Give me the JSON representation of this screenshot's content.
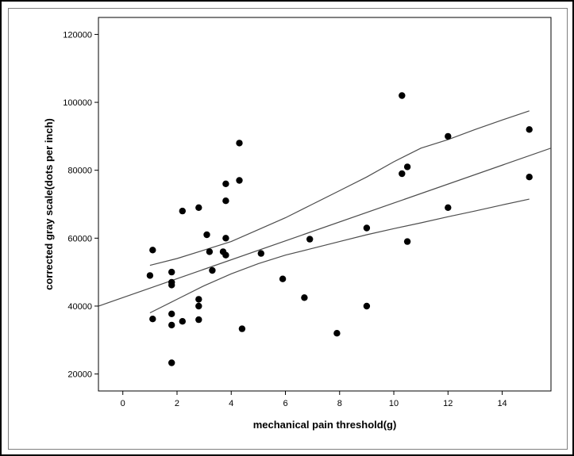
{
  "chart_data": {
    "type": "scatter",
    "xlabel": "mechanical pain threshold(g)",
    "ylabel": "corrected gray scale(dots per inch)",
    "xlim": [
      -0.9,
      15.8
    ],
    "ylim": [
      15000,
      125000
    ],
    "xticks": [
      "0",
      "2",
      "4",
      "6",
      "8",
      "10",
      "12",
      "14"
    ],
    "yticks": [
      "20000",
      "40000",
      "60000",
      "80000",
      "100000",
      "120000"
    ],
    "grid": false,
    "colors": {
      "points": "#000000",
      "lines": "#4d4d4d",
      "axis": "#000000"
    },
    "points": [
      {
        "x": 1.0,
        "y": 49000
      },
      {
        "x": 1.1,
        "y": 56500
      },
      {
        "x": 1.1,
        "y": 36200
      },
      {
        "x": 1.8,
        "y": 50000
      },
      {
        "x": 1.8,
        "y": 47000
      },
      {
        "x": 1.8,
        "y": 46200
      },
      {
        "x": 1.8,
        "y": 37700
      },
      {
        "x": 1.8,
        "y": 34400
      },
      {
        "x": 1.8,
        "y": 23300
      },
      {
        "x": 2.2,
        "y": 68000
      },
      {
        "x": 2.2,
        "y": 35500
      },
      {
        "x": 2.8,
        "y": 69000
      },
      {
        "x": 2.8,
        "y": 42000
      },
      {
        "x": 2.8,
        "y": 40000
      },
      {
        "x": 2.8,
        "y": 36000
      },
      {
        "x": 3.1,
        "y": 61000
      },
      {
        "x": 3.2,
        "y": 56000
      },
      {
        "x": 3.3,
        "y": 50500
      },
      {
        "x": 3.7,
        "y": 56000
      },
      {
        "x": 3.8,
        "y": 76000
      },
      {
        "x": 3.8,
        "y": 71000
      },
      {
        "x": 3.8,
        "y": 60000
      },
      {
        "x": 3.8,
        "y": 55000
      },
      {
        "x": 4.3,
        "y": 88000
      },
      {
        "x": 4.3,
        "y": 77000
      },
      {
        "x": 4.4,
        "y": 33300
      },
      {
        "x": 5.1,
        "y": 55500
      },
      {
        "x": 5.9,
        "y": 48000
      },
      {
        "x": 6.7,
        "y": 42500
      },
      {
        "x": 6.9,
        "y": 59700
      },
      {
        "x": 7.9,
        "y": 32000
      },
      {
        "x": 9.0,
        "y": 63000
      },
      {
        "x": 9.0,
        "y": 40000
      },
      {
        "x": 10.3,
        "y": 102000
      },
      {
        "x": 10.3,
        "y": 79000
      },
      {
        "x": 10.5,
        "y": 81000
      },
      {
        "x": 10.5,
        "y": 59000
      },
      {
        "x": 12.0,
        "y": 90000
      },
      {
        "x": 12.0,
        "y": 69000
      },
      {
        "x": 15.0,
        "y": 92000
      },
      {
        "x": 15.0,
        "y": 78000
      }
    ],
    "fit_line": [
      {
        "x": -0.9,
        "y": 40000
      },
      {
        "x": 15.8,
        "y": 86500
      }
    ],
    "upper_band": [
      {
        "x": 1.0,
        "y": 52000
      },
      {
        "x": 2.0,
        "y": 54000
      },
      {
        "x": 3.0,
        "y": 56500
      },
      {
        "x": 4.0,
        "y": 59000
      },
      {
        "x": 5.0,
        "y": 62500
      },
      {
        "x": 6.0,
        "y": 66000
      },
      {
        "x": 7.0,
        "y": 70000
      },
      {
        "x": 8.0,
        "y": 74000
      },
      {
        "x": 9.0,
        "y": 78000
      },
      {
        "x": 10.0,
        "y": 82500
      },
      {
        "x": 11.0,
        "y": 86500
      },
      {
        "x": 12.0,
        "y": 89000
      },
      {
        "x": 13.0,
        "y": 92000
      },
      {
        "x": 14.0,
        "y": 94800
      },
      {
        "x": 15.0,
        "y": 97500
      }
    ],
    "lower_band": [
      {
        "x": 1.0,
        "y": 38000
      },
      {
        "x": 2.0,
        "y": 42000
      },
      {
        "x": 3.0,
        "y": 46000
      },
      {
        "x": 4.0,
        "y": 49500
      },
      {
        "x": 5.0,
        "y": 52500
      },
      {
        "x": 6.0,
        "y": 55000
      },
      {
        "x": 7.0,
        "y": 57000
      },
      {
        "x": 8.0,
        "y": 59000
      },
      {
        "x": 9.0,
        "y": 61000
      },
      {
        "x": 10.0,
        "y": 62800
      },
      {
        "x": 11.0,
        "y": 64500
      },
      {
        "x": 12.0,
        "y": 66300
      },
      {
        "x": 13.0,
        "y": 68000
      },
      {
        "x": 14.0,
        "y": 69800
      },
      {
        "x": 15.0,
        "y": 71500
      }
    ]
  }
}
